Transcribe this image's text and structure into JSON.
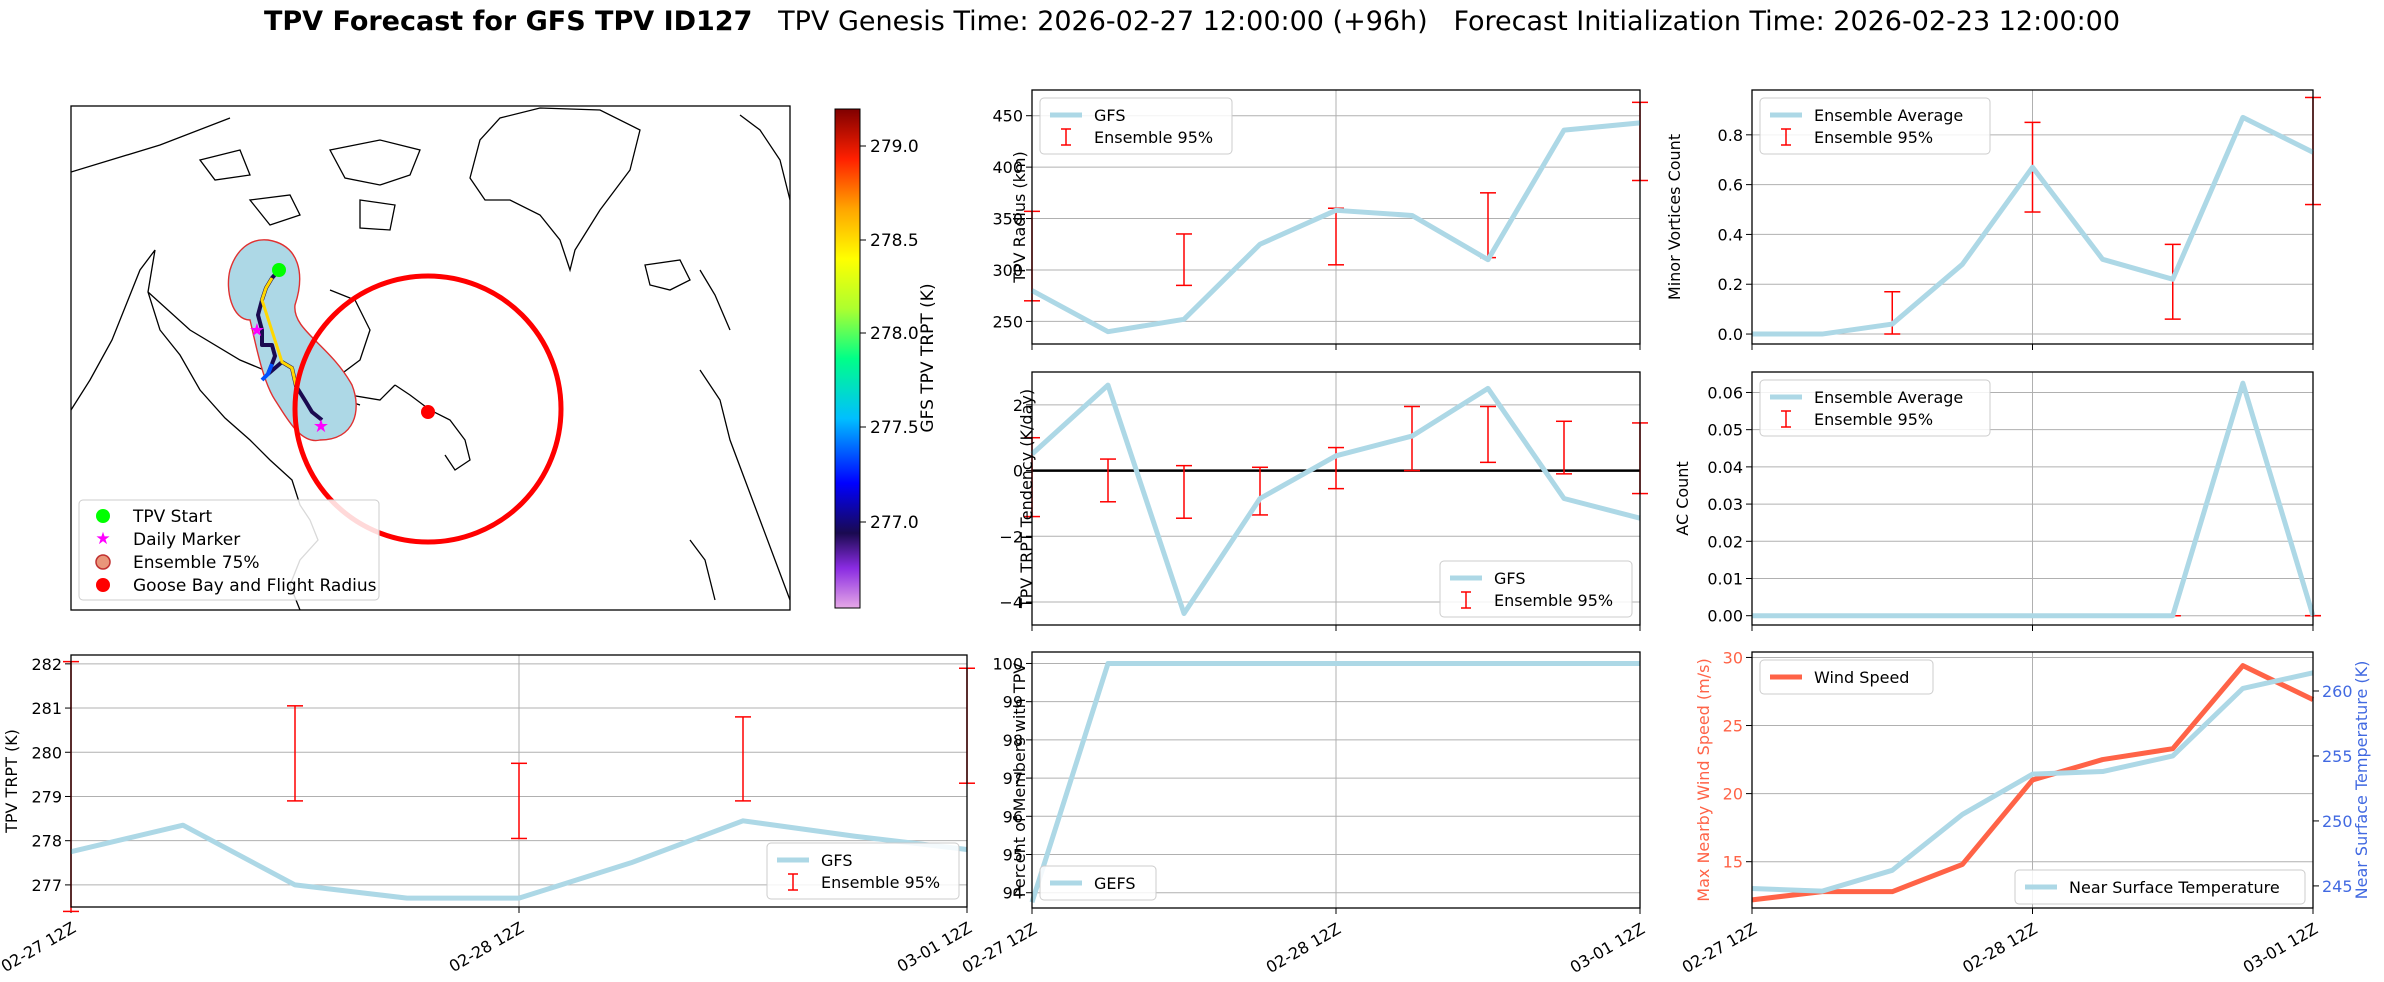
{
  "figure": {
    "title_bold": "TPV Forecast for GFS TPV ID127",
    "title_rest": "TPV Genesis Time: 2026-02-27 12:00:00 (+96h)   Forecast Initialization Time: 2026-02-23 12:00:00"
  },
  "map": {
    "colorbar_label": "GFS TPV TRPT (K)",
    "colorbar_ticks": [
      "279.0",
      "278.5",
      "278.0",
      "277.5",
      "277.0"
    ],
    "legend": [
      "TPV Start",
      "Daily Marker",
      "Ensemble 75%",
      "Goose Bay and Flight Radius"
    ],
    "colors": {
      "start": "#00ff00",
      "marker": "#ff00ff",
      "ensemble_fill": "#add8e6",
      "ensemble_edge": "#e03030",
      "goose_bay": "#ff0000"
    }
  },
  "chart_data": [
    {
      "id": "trpt",
      "type": "line",
      "ylabel": "TPV TRPT (K)",
      "x": [
        "02-27 12Z",
        "02-27 18Z",
        "02-28 00Z",
        "02-28 06Z",
        "02-28 12Z",
        "02-28 18Z",
        "03-01 00Z",
        "03-01 06Z",
        "03-01 12Z"
      ],
      "xtick_labels": [
        "02-27 12Z",
        "02-28 12Z",
        "03-01 12Z"
      ],
      "yticks": [
        "277",
        "278",
        "279",
        "280",
        "281",
        "282"
      ],
      "ylim": [
        276.5,
        282.2
      ],
      "series": [
        {
          "name": "GFS",
          "values": [
            277.75,
            278.35,
            277.0,
            276.7,
            276.7,
            277.5,
            278.45,
            278.1,
            277.8
          ],
          "color": "#add8e6"
        }
      ],
      "errorbars": {
        "name": "Ensemble 95%",
        "x_index": [
          0,
          2,
          4,
          6,
          8
        ],
        "low": [
          276.4,
          278.9,
          278.05,
          278.9,
          279.3
        ],
        "high": [
          282.05,
          281.05,
          279.75,
          280.8,
          281.9
        ],
        "color": "#ff0000"
      },
      "legend": "lower right"
    },
    {
      "id": "radius",
      "type": "line",
      "ylabel": "TPV Radius (km)",
      "x": [
        "02-27 12Z",
        "02-27 18Z",
        "02-28 00Z",
        "02-28 06Z",
        "02-28 12Z",
        "02-28 18Z",
        "03-01 00Z",
        "03-01 06Z",
        "03-01 12Z"
      ],
      "yticks": [
        "250",
        "300",
        "350",
        "400",
        "450"
      ],
      "ylim": [
        228,
        475
      ],
      "series": [
        {
          "name": "GFS",
          "values": [
            280,
            240,
            252,
            325,
            358,
            353,
            310,
            436,
            443
          ],
          "color": "#add8e6"
        }
      ],
      "errorbars": {
        "name": "Ensemble 95%",
        "x_index": [
          0,
          2,
          4,
          6,
          8
        ],
        "low": [
          270,
          285,
          305,
          312,
          387
        ],
        "high": [
          357,
          335,
          360,
          375,
          463
        ],
        "color": "#ff0000"
      },
      "legend": "upper left"
    },
    {
      "id": "minor",
      "type": "line",
      "ylabel": "Minor Vortices Count",
      "x": [
        "02-27 12Z",
        "02-27 18Z",
        "02-28 00Z",
        "02-28 06Z",
        "02-28 12Z",
        "02-28 18Z",
        "03-01 00Z",
        "03-01 06Z",
        "03-01 12Z"
      ],
      "yticks": [
        "0.0",
        "0.2",
        "0.4",
        "0.6",
        "0.8"
      ],
      "ylim": [
        -0.04,
        0.98
      ],
      "series": [
        {
          "name": "Ensemble Average",
          "values": [
            0.0,
            0.0,
            0.04,
            0.28,
            0.67,
            0.3,
            0.22,
            0.87,
            0.73
          ],
          "color": "#add8e6"
        }
      ],
      "errorbars": {
        "name": "Ensemble 95%",
        "x_index": [
          2,
          4,
          6,
          8
        ],
        "low": [
          0.0,
          0.49,
          0.06,
          0.52
        ],
        "high": [
          0.17,
          0.85,
          0.36,
          0.95
        ],
        "color": "#ff0000"
      },
      "legend": "upper left"
    },
    {
      "id": "tendency",
      "type": "line",
      "ylabel": "TPV TRPT Tendency (K/day)",
      "x": [
        "02-27 12Z",
        "02-27 18Z",
        "02-28 00Z",
        "02-28 06Z",
        "02-28 12Z",
        "02-28 18Z",
        "03-01 00Z",
        "03-01 06Z",
        "03-01 12Z"
      ],
      "yticks": [
        "−4",
        "−2",
        "0",
        "2"
      ],
      "ylim": [
        -4.7,
        3.0
      ],
      "series": [
        {
          "name": "GFS",
          "values": [
            0.5,
            2.6,
            -4.35,
            -0.85,
            0.45,
            1.05,
            2.5,
            -0.85,
            -1.45
          ],
          "color": "#add8e6"
        }
      ],
      "errorbars": {
        "name": "Ensemble 95%",
        "x_index": [
          0,
          1,
          2,
          3,
          4,
          5,
          6,
          7,
          8
        ],
        "low": [
          -1.4,
          -0.95,
          -1.45,
          -1.35,
          -0.55,
          0.0,
          0.25,
          -0.1,
          -0.7
        ],
        "high": [
          1.0,
          0.35,
          0.15,
          0.1,
          0.7,
          1.95,
          1.95,
          1.5,
          1.45
        ],
        "color": "#ff0000"
      },
      "zero_line": true,
      "legend": "lower right"
    },
    {
      "id": "ac",
      "type": "line",
      "ylabel": "AC Count",
      "x": [
        "02-27 12Z",
        "02-27 18Z",
        "02-28 00Z",
        "02-28 06Z",
        "02-28 12Z",
        "02-28 18Z",
        "03-01 00Z",
        "03-01 06Z",
        "03-01 12Z"
      ],
      "yticks": [
        "0.00",
        "0.01",
        "0.02",
        "0.03",
        "0.04",
        "0.05",
        "0.06"
      ],
      "ylim": [
        -0.0025,
        0.0655
      ],
      "series": [
        {
          "name": "Ensemble Average",
          "values": [
            0,
            0,
            0,
            0,
            0,
            0,
            0,
            0.0625,
            0
          ],
          "color": "#add8e6"
        }
      ],
      "errorbars": {
        "name": "Ensemble 95%",
        "x_index": [
          2,
          4,
          6,
          8
        ],
        "low": [
          0,
          0,
          0,
          0
        ],
        "high": [
          0,
          0,
          0,
          0
        ],
        "color": "#ff0000"
      },
      "legend": "upper left"
    },
    {
      "id": "members",
      "type": "line",
      "ylabel": "Percent of Members with TPV",
      "x": [
        "02-27 12Z",
        "02-27 18Z",
        "02-28 00Z",
        "02-28 06Z",
        "02-28 12Z",
        "02-28 18Z",
        "03-01 00Z",
        "03-01 06Z",
        "03-01 12Z"
      ],
      "xtick_labels": [
        "02-27 12Z",
        "02-28 12Z",
        "03-01 12Z"
      ],
      "yticks": [
        "94",
        "95",
        "96",
        "97",
        "98",
        "99",
        "100"
      ],
      "ylim": [
        93.6,
        100.3
      ],
      "series": [
        {
          "name": "GEFS",
          "values": [
            93.75,
            100,
            100,
            100,
            100,
            100,
            100,
            100,
            100
          ],
          "color": "#add8e6"
        }
      ],
      "legend": "lower left"
    },
    {
      "id": "wind",
      "type": "line",
      "ylabel": "Max Nearby Wind Speed (m/s)",
      "ylabel2": "Near Surface Temperature (K)",
      "x": [
        "02-27 12Z",
        "02-27 18Z",
        "02-28 00Z",
        "02-28 06Z",
        "02-28 12Z",
        "02-28 18Z",
        "03-01 00Z",
        "03-01 06Z",
        "03-01 12Z"
      ],
      "xtick_labels": [
        "02-27 12Z",
        "02-28 12Z",
        "03-01 12Z"
      ],
      "yticks": [
        "15",
        "20",
        "25",
        "30"
      ],
      "ylim": [
        11.6,
        30.4
      ],
      "yticks2": [
        "245",
        "250",
        "255",
        "260"
      ],
      "ylim2": [
        243.3,
        263.0
      ],
      "series": [
        {
          "name": "Wind Speed",
          "values": [
            12.2,
            12.8,
            12.8,
            14.8,
            21.0,
            22.5,
            23.3,
            29.4,
            26.9
          ],
          "color": "#ff6347",
          "axis": "left"
        },
        {
          "name": "Near Surface Temperature",
          "values": [
            244.8,
            244.6,
            246.2,
            250.5,
            253.6,
            253.8,
            255.0,
            260.2,
            261.4
          ],
          "color": "#add8e6",
          "axis": "right"
        }
      ],
      "colors": {
        "left_axis": "#ff6347",
        "right_axis": "#4169e1"
      }
    }
  ]
}
